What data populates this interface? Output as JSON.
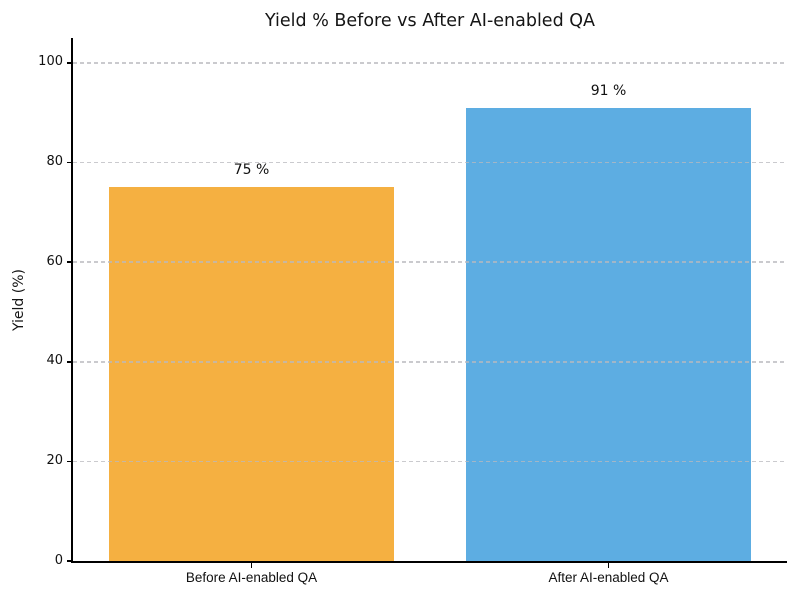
{
  "figure": {
    "background": "#ffffff"
  },
  "chart_data": {
    "type": "bar",
    "title": "Yield % Before vs After AI-enabled QA",
    "categories": [
      "Before AI-enabled QA",
      "After AI-enabled QA"
    ],
    "values": [
      75,
      91
    ],
    "bar_labels": [
      "75 %",
      "91 %"
    ],
    "bar_colors": [
      "#f5b041",
      "#5dade2"
    ],
    "xlabel": "",
    "ylabel": "Yield (%)",
    "ylim": [
      0,
      105
    ],
    "yticks": [
      0,
      20,
      40,
      60,
      80,
      100
    ],
    "ytick_labels": [
      "0",
      "20",
      "40",
      "60",
      "80",
      "100"
    ],
    "grid": "horizontal-dashed",
    "grid_over_bars": true,
    "grid_color": "#c9c9cc",
    "legend": "none",
    "axis_color": "#000000",
    "text_color": "#151515"
  }
}
